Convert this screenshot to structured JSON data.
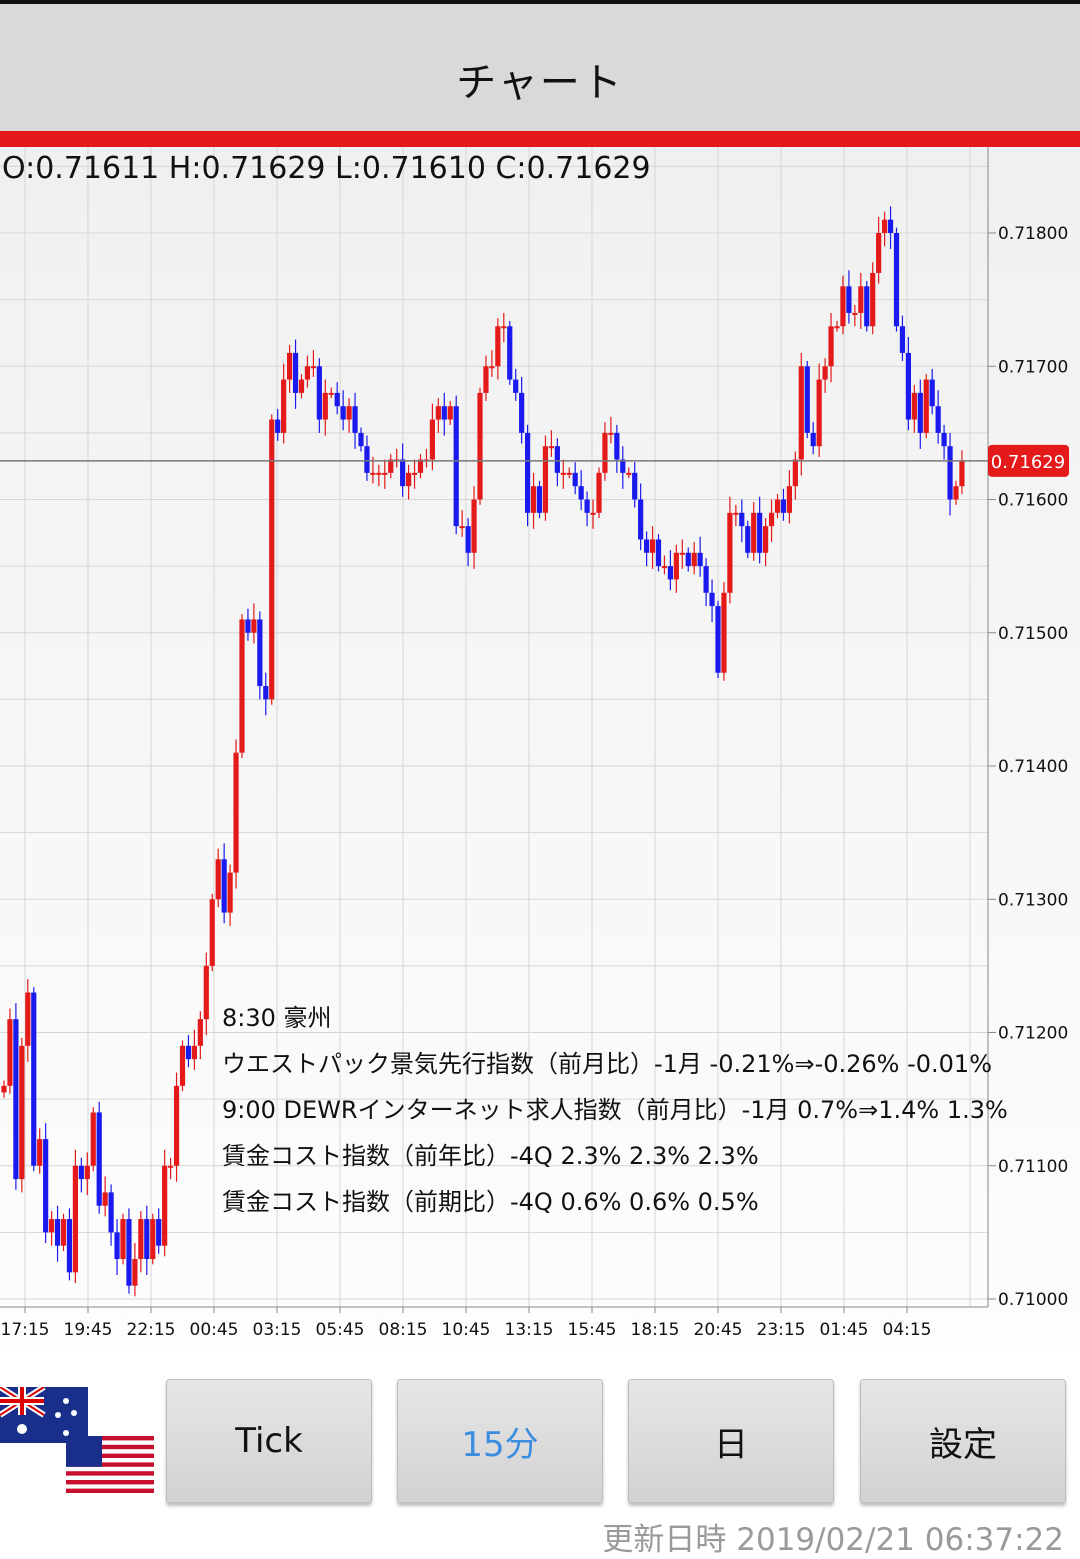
{
  "header": {
    "title": "チャート"
  },
  "ohlc": {
    "text": "O:0.71611 H:0.71629 L:0.71610 C:0.71629"
  },
  "price_tag": {
    "label": "0.71629",
    "value": 0.71629
  },
  "colors": {
    "up": "#e41a1a",
    "down": "#1a1aee",
    "accent_red": "#e41a1a",
    "active_blue": "#3b8de0"
  },
  "chart_data": {
    "type": "candlestick",
    "ylim": [
      0.71,
      0.7187
    ],
    "y_ticks": [
      "0.71800",
      "0.71700",
      "0.71600",
      "0.71500",
      "0.71400",
      "0.71300",
      "0.71200",
      "0.71100",
      "0.71000"
    ],
    "x_ticks": [
      "17:15",
      "19:45",
      "22:15",
      "00:45",
      "03:15",
      "05:45",
      "08:15",
      "10:45",
      "13:15",
      "15:45",
      "18:15",
      "20:45",
      "23:15",
      "01:45",
      "04:15"
    ],
    "current_price": 0.71629,
    "grid": true,
    "closes": [
      0.7116,
      0.7121,
      0.7109,
      0.7119,
      0.7123,
      0.711,
      0.7112,
      0.7105,
      0.7106,
      0.7104,
      0.7106,
      0.7102,
      0.711,
      0.7109,
      0.711,
      0.7114,
      0.7107,
      0.7108,
      0.7105,
      0.7103,
      0.7106,
      0.7101,
      0.7103,
      0.7106,
      0.7103,
      0.7106,
      0.7104,
      0.711,
      0.711,
      0.7116,
      0.7119,
      0.7118,
      0.7119,
      0.7121,
      0.7125,
      0.713,
      0.7133,
      0.7129,
      0.7132,
      0.7141,
      0.7151,
      0.715,
      0.7151,
      0.7146,
      0.7145,
      0.7166,
      0.7165,
      0.7169,
      0.7171,
      0.7168,
      0.7169,
      0.717,
      0.717,
      0.7166,
      0.7168,
      0.7168,
      0.7167,
      0.7166,
      0.7167,
      0.7165,
      0.7164,
      0.7162,
      0.7162,
      0.7162,
      0.7162,
      0.7163,
      0.7163,
      0.7161,
      0.7162,
      0.7162,
      0.7163,
      0.7163,
      0.7166,
      0.7167,
      0.7166,
      0.7167,
      0.7158,
      0.7158,
      0.7156,
      0.716,
      0.7168,
      0.717,
      0.717,
      0.7173,
      0.7173,
      0.7169,
      0.7168,
      0.7165,
      0.7159,
      0.7161,
      0.7159,
      0.7164,
      0.7164,
      0.7162,
      0.7162,
      0.7162,
      0.7161,
      0.716,
      0.7159,
      0.7159,
      0.7162,
      0.7165,
      0.7165,
      0.7163,
      0.7162,
      0.7162,
      0.716,
      0.7157,
      0.7156,
      0.7157,
      0.7155,
      0.7155,
      0.7154,
      0.7156,
      0.7156,
      0.7155,
      0.7156,
      0.7155,
      0.7153,
      0.7152,
      0.7147,
      0.7153,
      0.7159,
      0.7159,
      0.7158,
      0.7156,
      0.7159,
      0.7156,
      0.7158,
      0.7159,
      0.716,
      0.7159,
      0.7161,
      0.7163,
      0.717,
      0.7165,
      0.7164,
      0.7169,
      0.717,
      0.7173,
      0.7173,
      0.7176,
      0.7174,
      0.7174,
      0.7176,
      0.7173,
      0.7177,
      0.718,
      0.7181,
      0.718,
      0.7173,
      0.7171,
      0.7166,
      0.7168,
      0.7165,
      0.7169,
      0.7167,
      0.7165,
      0.7164,
      0.716,
      0.7161,
      0.71629
    ]
  },
  "events": {
    "lines": [
      "8:30 豪州",
      "ウエストパック景気先行指数（前月比）-1月 -0.21%⇒-0.26% -0.01%",
      "9:00  DEWRインターネット求人指数（前月比）-1月 0.7%⇒1.4% 1.3%",
      " 賃金コスト指数（前年比）-4Q 2.3% 2.3% 2.3%",
      " 賃金コスト指数（前期比）-4Q 0.6% 0.6% 0.5%"
    ]
  },
  "toolbar": {
    "flag_top": "australia-flag-icon",
    "flag_bottom": "usa-flag-icon",
    "buttons": [
      {
        "label": "Tick",
        "active": false
      },
      {
        "label": "15分",
        "active": true
      },
      {
        "label": "日",
        "active": false
      },
      {
        "label": "設定",
        "active": false
      }
    ]
  },
  "status": {
    "updated": "更新日時 2019/02/21 06:37:22"
  }
}
